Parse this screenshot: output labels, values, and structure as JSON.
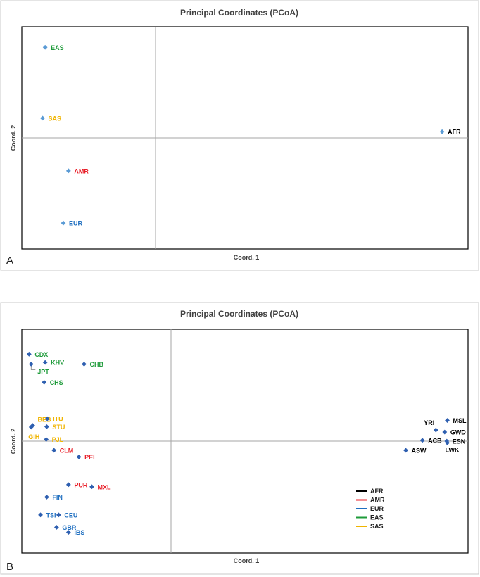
{
  "colors": {
    "AFR": "#000000",
    "AMR": "#e8202a",
    "EUR": "#1f6fc0",
    "EAS": "#1e9b3a",
    "SAS": "#f0b400",
    "marker_a": "#5b9bd5",
    "marker_b": "#2e5fb0"
  },
  "chart_data": [
    {
      "panel": "A",
      "type": "scatter",
      "title": "Principal Coordinates (PCoA)",
      "xlabel": "Coord. 1",
      "ylabel": "Coord. 2",
      "xlim": [
        -0.3,
        0.56
      ],
      "ylim": [
        -0.27,
        0.27
      ],
      "grid": false,
      "points": [
        {
          "label": "EAS",
          "group": "EAS",
          "x": -0.255,
          "y": 0.22,
          "anchor": "right"
        },
        {
          "label": "SAS",
          "group": "SAS",
          "x": -0.26,
          "y": 0.048,
          "anchor": "right"
        },
        {
          "label": "AFR",
          "group": "AFR",
          "x": 0.51,
          "y": 0.015,
          "anchor": "right"
        },
        {
          "label": "AMR",
          "group": "AMR",
          "x": -0.21,
          "y": -0.08,
          "anchor": "right"
        },
        {
          "label": "EUR",
          "group": "EUR",
          "x": -0.22,
          "y": -0.207,
          "anchor": "right"
        }
      ]
    },
    {
      "panel": "B",
      "type": "scatter",
      "title": "Principal Coordinates (PCoA)",
      "xlabel": "Coord. 1",
      "ylabel": "Coord. 2",
      "xlim": [
        -0.3,
        0.56
      ],
      "ylim": [
        -0.27,
        0.27
      ],
      "grid": false,
      "legend": {
        "position": "bottom-right",
        "entries": [
          "AFR",
          "AMR",
          "EUR",
          "EAS",
          "SAS"
        ]
      },
      "points": [
        {
          "label": "CDX",
          "group": "EAS",
          "x": -0.286,
          "y": 0.21,
          "anchor": "right"
        },
        {
          "label": "JPT",
          "group": "EAS",
          "x": -0.282,
          "y": 0.186,
          "anchor": "below-right",
          "leader": true
        },
        {
          "label": "KHV",
          "group": "EAS",
          "x": -0.255,
          "y": 0.19,
          "anchor": "right"
        },
        {
          "label": "CHB",
          "group": "EAS",
          "x": -0.18,
          "y": 0.186,
          "anchor": "right"
        },
        {
          "label": "CHS",
          "group": "EAS",
          "x": -0.257,
          "y": 0.142,
          "anchor": "right"
        },
        {
          "label": "BEB",
          "group": "SAS",
          "x": -0.279,
          "y": 0.038,
          "anchor": "above-right"
        },
        {
          "label": "GIH",
          "group": "SAS",
          "x": -0.282,
          "y": 0.034,
          "anchor": "below-left"
        },
        {
          "label": "ITU",
          "group": "SAS",
          "x": -0.251,
          "y": 0.054,
          "anchor": "right"
        },
        {
          "label": "STU",
          "group": "SAS",
          "x": -0.252,
          "y": 0.035,
          "anchor": "right"
        },
        {
          "label": "PJL",
          "group": "SAS",
          "x": -0.253,
          "y": 0.004,
          "anchor": "right"
        },
        {
          "label": "CLM",
          "group": "AMR",
          "x": -0.238,
          "y": -0.022,
          "anchor": "right"
        },
        {
          "label": "PEL",
          "group": "AMR",
          "x": -0.19,
          "y": -0.038,
          "anchor": "right"
        },
        {
          "label": "PUR",
          "group": "AMR",
          "x": -0.21,
          "y": -0.105,
          "anchor": "right"
        },
        {
          "label": "MXL",
          "group": "AMR",
          "x": -0.165,
          "y": -0.11,
          "anchor": "right"
        },
        {
          "label": "FIN",
          "group": "EUR",
          "x": -0.252,
          "y": -0.135,
          "anchor": "right"
        },
        {
          "label": "TSI",
          "group": "EUR",
          "x": -0.264,
          "y": -0.178,
          "anchor": "right"
        },
        {
          "label": "CEU",
          "group": "EUR",
          "x": -0.229,
          "y": -0.178,
          "anchor": "right"
        },
        {
          "label": "GBR",
          "group": "EUR",
          "x": -0.233,
          "y": -0.208,
          "anchor": "right"
        },
        {
          "label": "IBS",
          "group": "EUR",
          "x": -0.21,
          "y": -0.22,
          "anchor": "right"
        },
        {
          "label": "MSL",
          "group": "AFR",
          "x": 0.52,
          "y": 0.05,
          "anchor": "right"
        },
        {
          "label": "YRI",
          "group": "AFR",
          "x": 0.498,
          "y": 0.027,
          "anchor": "above-left"
        },
        {
          "label": "GWD",
          "group": "AFR",
          "x": 0.515,
          "y": 0.022,
          "anchor": "right"
        },
        {
          "label": "ACB",
          "group": "AFR",
          "x": 0.472,
          "y": 0.002,
          "anchor": "right"
        },
        {
          "label": "ESN",
          "group": "AFR",
          "x": 0.519,
          "y": 0.0,
          "anchor": "right"
        },
        {
          "label": "LWK",
          "group": "AFR",
          "x": 0.52,
          "y": -0.004,
          "anchor": "below"
        },
        {
          "label": "ASW",
          "group": "AFR",
          "x": 0.44,
          "y": -0.022,
          "anchor": "right"
        }
      ]
    }
  ]
}
